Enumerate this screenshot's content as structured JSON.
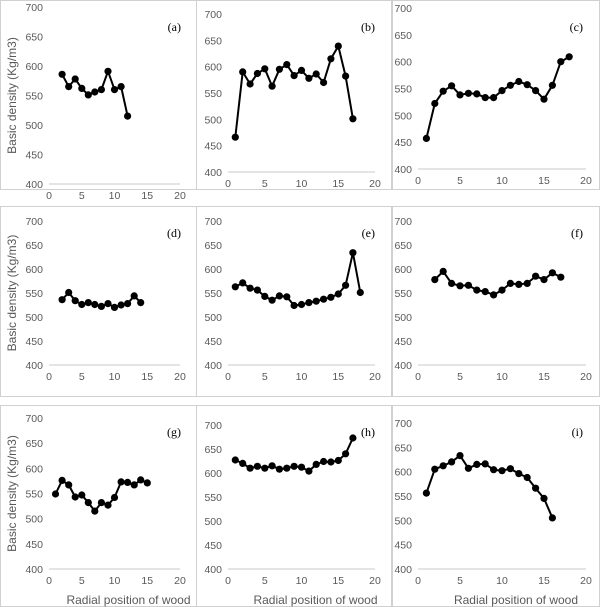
{
  "figure": {
    "ylabel": "Basic density (Kg/m3)",
    "xlabel": "Radial position of wood",
    "colors": {
      "series": "#000000",
      "axis": "#c8c8c8",
      "text": "#595959",
      "frame": "#d0d0d0"
    }
  },
  "chart_data": [
    {
      "type": "line",
      "panel": "(a)",
      "xlim": [
        0,
        20
      ],
      "ylim": [
        400,
        700
      ],
      "xticks": [
        "0",
        "5",
        "10",
        "15",
        "20"
      ],
      "yticks": [
        "400",
        "450",
        "500",
        "550",
        "600",
        "650",
        "700"
      ],
      "ylabel": "Basic density (Kg/m3)",
      "xlabel": "",
      "x": [
        2,
        3,
        4,
        5,
        6,
        7,
        8,
        9,
        10,
        11,
        12
      ],
      "y": [
        586,
        565,
        578,
        562,
        551,
        556,
        560,
        591,
        560,
        565,
        515
      ]
    },
    {
      "type": "line",
      "panel": "(b)",
      "xlim": [
        0,
        20
      ],
      "ylim": [
        400,
        700
      ],
      "xticks": [
        "0",
        "5",
        "10",
        "15",
        "20"
      ],
      "yticks": [
        "400",
        "450",
        "500",
        "550",
        "600",
        "650",
        "700"
      ],
      "ylabel": "",
      "xlabel": "",
      "x": [
        1,
        2,
        3,
        4,
        5,
        6,
        7,
        8,
        9,
        10,
        11,
        12,
        13,
        14,
        15,
        16,
        17
      ],
      "y": [
        466,
        590,
        567,
        587,
        596,
        563,
        595,
        604,
        583,
        593,
        578,
        586,
        570,
        615,
        639,
        582,
        501
      ]
    },
    {
      "type": "line",
      "panel": "(c)",
      "xlim": [
        0,
        20
      ],
      "ylim": [
        400,
        700
      ],
      "xticks": [
        "0",
        "5",
        "10",
        "15",
        "20"
      ],
      "yticks": [
        "400",
        "450",
        "500",
        "550",
        "600",
        "650",
        "700"
      ],
      "ylabel": "",
      "xlabel": "",
      "x": [
        1,
        2,
        3,
        4,
        5,
        6,
        7,
        8,
        9,
        10,
        11,
        12,
        13,
        14,
        15,
        16,
        17,
        18
      ],
      "y": [
        457,
        522,
        545,
        555,
        538,
        541,
        540,
        533,
        533,
        546,
        556,
        563,
        557,
        546,
        530,
        556,
        600,
        609
      ]
    },
    {
      "type": "line",
      "panel": "(d)",
      "xlim": [
        0,
        20
      ],
      "ylim": [
        400,
        700
      ],
      "xticks": [
        "0",
        "5",
        "10",
        "15",
        "20"
      ],
      "yticks": [
        "400",
        "450",
        "500",
        "550",
        "600",
        "650",
        "700"
      ],
      "ylabel": "Basic density (Kg/m3)",
      "xlabel": "",
      "x": [
        2,
        3,
        4,
        5,
        6,
        7,
        8,
        9,
        10,
        11,
        12,
        13,
        14
      ],
      "y": [
        536,
        551,
        534,
        526,
        530,
        526,
        522,
        528,
        520,
        525,
        528,
        544,
        530
      ]
    },
    {
      "type": "line",
      "panel": "(e)",
      "xlim": [
        0,
        20
      ],
      "ylim": [
        400,
        700
      ],
      "xticks": [
        "0",
        "5",
        "10",
        "15",
        "20"
      ],
      "yticks": [
        "400",
        "450",
        "500",
        "550",
        "600",
        "650",
        "700"
      ],
      "ylabel": "",
      "xlabel": "",
      "x": [
        1,
        2,
        3,
        4,
        5,
        6,
        7,
        8,
        9,
        10,
        11,
        12,
        13,
        14,
        15,
        16,
        17,
        18
      ],
      "y": [
        563,
        571,
        560,
        556,
        543,
        535,
        544,
        542,
        524,
        526,
        530,
        533,
        537,
        541,
        548,
        566,
        634,
        551
      ]
    },
    {
      "type": "line",
      "panel": "(f)",
      "xlim": [
        0,
        20
      ],
      "ylim": [
        400,
        700
      ],
      "xticks": [
        "0",
        "5",
        "10",
        "15",
        "20"
      ],
      "yticks": [
        "400",
        "450",
        "500",
        "550",
        "600",
        "650",
        "700"
      ],
      "ylabel": "",
      "xlabel": "",
      "x": [
        2,
        3,
        4,
        5,
        6,
        7,
        8,
        9,
        10,
        11,
        12,
        13,
        14,
        15,
        16,
        17
      ],
      "y": [
        578,
        595,
        570,
        565,
        566,
        556,
        553,
        546,
        556,
        570,
        568,
        570,
        585,
        578,
        592,
        583
      ]
    },
    {
      "type": "line",
      "panel": "(g)",
      "xlim": [
        0,
        20
      ],
      "ylim": [
        400,
        700
      ],
      "xticks": [
        "0",
        "5",
        "10",
        "15",
        "20"
      ],
      "yticks": [
        "400",
        "450",
        "500",
        "550",
        "600",
        "650",
        "700"
      ],
      "ylabel": "Basic density (Kg/m3)",
      "xlabel": "Radial position of wood",
      "x": [
        1,
        2,
        3,
        4,
        5,
        6,
        7,
        8,
        9,
        10,
        11,
        12,
        13,
        14,
        15
      ],
      "y": [
        549,
        576,
        567,
        543,
        547,
        532,
        515,
        532,
        527,
        542,
        573,
        572,
        567,
        577,
        571
      ]
    },
    {
      "type": "line",
      "panel": "(h)",
      "xlim": [
        0,
        20
      ],
      "ylim": [
        400,
        700
      ],
      "xticks": [
        "0",
        "5",
        "10",
        "15",
        "20"
      ],
      "yticks": [
        "400",
        "450",
        "500",
        "550",
        "600",
        "650",
        "700"
      ],
      "ylabel": "",
      "xlabel": "Radial position of wood",
      "x": [
        1,
        2,
        3,
        4,
        5,
        6,
        7,
        8,
        9,
        10,
        11,
        12,
        13,
        14,
        15,
        16,
        17
      ],
      "y": [
        627,
        620,
        610,
        614,
        610,
        615,
        608,
        610,
        614,
        612,
        604,
        618,
        624,
        623,
        626,
        640,
        673
      ]
    },
    {
      "type": "line",
      "panel": "(i)",
      "xlim": [
        0,
        20
      ],
      "ylim": [
        400,
        700
      ],
      "xticks": [
        "0",
        "5",
        "10",
        "15",
        "20"
      ],
      "yticks": [
        "400",
        "450",
        "500",
        "550",
        "600",
        "650",
        "700"
      ],
      "ylabel": "",
      "xlabel": "Radial position of wood",
      "x": [
        1,
        2,
        3,
        4,
        5,
        6,
        7,
        8,
        9,
        10,
        11,
        12,
        13,
        14,
        15,
        16
      ],
      "y": [
        556,
        605,
        612,
        620,
        633,
        607,
        615,
        616,
        604,
        602,
        606,
        596,
        588,
        566,
        545,
        505
      ]
    }
  ]
}
